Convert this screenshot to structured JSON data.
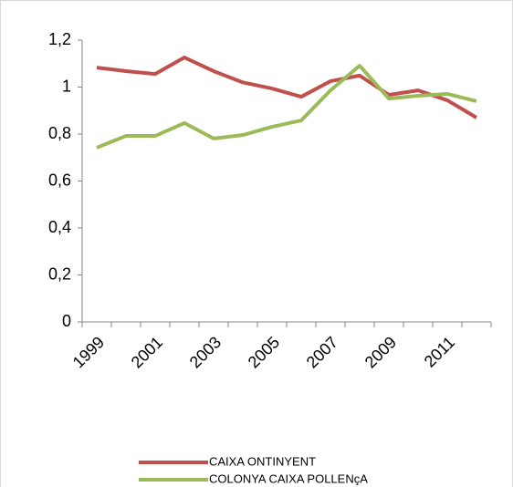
{
  "chart_data": {
    "type": "line",
    "categories": [
      "1999",
      null,
      "2001",
      null,
      "2003",
      null,
      "2005",
      null,
      "2007",
      null,
      "2009",
      null,
      "2011",
      null
    ],
    "series": [
      {
        "name": "CAIXA ONTINYENT",
        "color": "#c0504d",
        "values": [
          1.083,
          1.068,
          1.056,
          1.126,
          1.068,
          1.02,
          0.994,
          0.959,
          1.025,
          1.049,
          0.967,
          0.986,
          0.944,
          0.87
        ]
      },
      {
        "name": "COLONYA CAIXA POLLENçA",
        "color": "#9bbb59",
        "values": [
          0.742,
          0.792,
          0.792,
          0.847,
          0.781,
          0.796,
          0.831,
          0.858,
          0.986,
          1.091,
          0.951,
          0.963,
          0.971,
          0.94
        ]
      }
    ],
    "ylim": [
      0,
      1.2
    ],
    "yticks": [
      0,
      {
        "value": 0.2,
        "label": "0,2"
      },
      {
        "value": 0.4,
        "label": "0,4"
      },
      {
        "value": 0.6,
        "label": "0,6"
      },
      {
        "value": 0.8,
        "label": "0,8"
      },
      1,
      {
        "value": 1.2,
        "label": "1,2"
      }
    ],
    "legend": "bottom"
  }
}
